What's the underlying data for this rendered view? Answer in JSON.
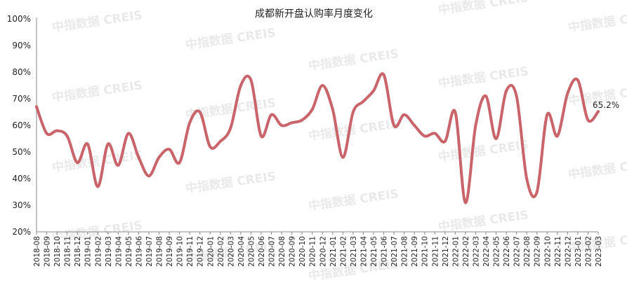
{
  "watermark": "中指数据 CREIS",
  "chart_data": {
    "type": "line",
    "title": "成都新开盘认购率月度变化",
    "xlabel": "",
    "ylabel": "",
    "ylim": [
      20,
      100
    ],
    "yticks": [
      "20%",
      "30%",
      "40%",
      "50%",
      "60%",
      "70%",
      "80%",
      "90%",
      "100%"
    ],
    "grid": false,
    "legend": "none",
    "colors": {
      "line": "#c9646a",
      "axis": "#888888"
    },
    "x": [
      "2018-08",
      "2018-09",
      "2018-10",
      "2018-11",
      "2018-12",
      "2019-01",
      "2019-02",
      "2019-03",
      "2019-04",
      "2019-05",
      "2019-06",
      "2019-07",
      "2019-08",
      "2019-09",
      "2019-10",
      "2019-11",
      "2019-12",
      "2020-01",
      "2020-02",
      "2020-03",
      "2020-04",
      "2020-05",
      "2020-06",
      "2020-07",
      "2020-08",
      "2020-09",
      "2020-10",
      "2020-11",
      "2020-12",
      "2021-01",
      "2021-02",
      "2021-03",
      "2021-04",
      "2021-05",
      "2021-06",
      "2021-07",
      "2021-08",
      "2021-09",
      "2021-10",
      "2021-11",
      "2021-12",
      "2022-01",
      "2022-02",
      "2022-03",
      "2022-04",
      "2022-05",
      "2022-06",
      "2022-07",
      "2022-08",
      "2022-09",
      "2022-10",
      "2022-11",
      "2022-12",
      "2023-01",
      "2023-02",
      "2023-03"
    ],
    "series": [
      {
        "values": [
          67,
          57,
          58,
          56,
          46,
          53,
          37,
          53,
          45,
          57,
          48,
          41,
          48,
          51,
          46,
          61,
          65,
          52,
          54,
          59,
          75,
          77,
          56,
          64,
          60,
          61,
          62,
          66,
          75,
          66,
          48,
          65,
          69,
          73,
          79,
          60,
          64,
          60,
          56,
          57,
          54,
          65,
          31,
          60,
          71,
          55,
          73,
          71,
          40,
          35,
          64,
          56,
          72,
          77,
          62,
          65.2
        ]
      }
    ],
    "end_label": "65.2%"
  }
}
